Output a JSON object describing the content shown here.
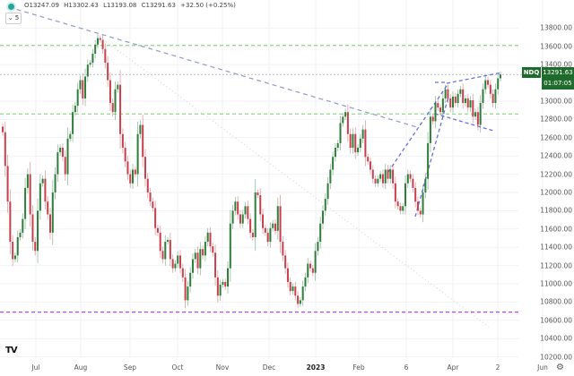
{
  "legend": {
    "open": "O13247.09",
    "high": "H13302.43",
    "low": "L13193.08",
    "close": "C13291.63",
    "change": "+32.50 (+0.25%)",
    "collapse_label": "⌄ 5"
  },
  "badge": {
    "symbol": "NDQ",
    "price": "13291.63",
    "countdown": "01:07:05"
  },
  "colors": {
    "up": "#2e7d3a",
    "down": "#c6414c",
    "badge": "#1f6b2b",
    "support": "#b04ee0",
    "level": "#7ccf6a",
    "trend": "#6a6fe0"
  },
  "icons": {
    "logo": "tradingview-logo",
    "settings": "gear-icon",
    "status": "status-dot-icon"
  },
  "chart_data": {
    "type": "candlestick",
    "symbol": "NDQ",
    "y_ticks": [
      "13800.00",
      "13600.00",
      "13400.00",
      "13000.00",
      "12800.00",
      "12600.00",
      "12400.00",
      "12200.00",
      "12000.00",
      "11800.00",
      "11600.00",
      "11400.00",
      "11200.00",
      "11000.00",
      "10800.00",
      "10600.00",
      "10400.00",
      "10200.00"
    ],
    "ylim": [
      10200,
      13800
    ],
    "x_ticks": [
      "Jul",
      "Aug",
      "Sep",
      "Oct",
      "Nov",
      "Dec",
      "2023",
      "Feb",
      "6",
      "Apr",
      "2",
      "Jun"
    ],
    "horizontal_levels": [
      {
        "price": 13610,
        "style": "green-dashed"
      },
      {
        "price": 12860,
        "style": "green-dashed"
      },
      {
        "price": 13291.63,
        "style": "gray-dotted"
      },
      {
        "price": 10690,
        "style": "purple-dashed"
      }
    ],
    "closes": [
      12660,
      12290,
      11900,
      11460,
      11270,
      11310,
      11510,
      11560,
      11710,
      12050,
      12200,
      11760,
      11460,
      11360,
      11800,
      12100,
      12150,
      11900,
      11760,
      11560,
      12000,
      12200,
      12440,
      12490,
      12390,
      12200,
      12590,
      12640,
      12880,
      12950,
      13130,
      13230,
      13030,
      13270,
      13400,
      13420,
      13520,
      13620,
      13690,
      13670,
      13570,
      13420,
      13230,
      12980,
      12880,
      13130,
      13180,
      12640,
      12490,
      12340,
      12200,
      12100,
      12250,
      12200,
      12640,
      12740,
      12390,
      12150,
      12000,
      11900,
      11830,
      11610,
      11560,
      11360,
      11270,
      11460,
      11480,
      11270,
      11170,
      11220,
      11310,
      11170,
      11070,
      10820,
      10970,
      11120,
      11270,
      11340,
      11170,
      11380,
      11310,
      11460,
      11560,
      11410,
      11340,
      11070,
      10870,
      10990,
      11020,
      10970,
      11170,
      11660,
      11800,
      11900,
      11760,
      11660,
      11760,
      11850,
      11710,
      11560,
      11510,
      12000,
      11970,
      11760,
      11610,
      11560,
      11460,
      11610,
      11660,
      11580,
      11850,
      11460,
      11310,
      11170,
      11020,
      10920,
      10970,
      10870,
      10780,
      10820,
      10970,
      11070,
      11220,
      11170,
      11120,
      11360,
      11460,
      11660,
      11800,
      11930,
      12100,
      12250,
      12390,
      12490,
      12540,
      12760,
      12830,
      12880,
      12640,
      12490,
      12640,
      12440,
      12490,
      12590,
      12690,
      12390,
      12340,
      12250,
      12150,
      12100,
      12150,
      12200,
      12100,
      12250,
      12150,
      12250,
      12100,
      11900,
      11850,
      11800,
      11850,
      12100,
      12200,
      12150,
      12050,
      11900,
      11800,
      11760,
      12000,
      12150,
      12540,
      12830,
      12780,
      12980,
      12930,
      12880,
      13030,
      13130,
      13030,
      12930,
      13050,
      12980,
      13080,
      13130,
      12980,
      13030,
      12930,
      13010,
      12830,
      12880,
      12740,
      12980,
      13130,
      13230,
      13180,
      13080,
      12980,
      13130,
      13250,
      13291.63
    ]
  }
}
